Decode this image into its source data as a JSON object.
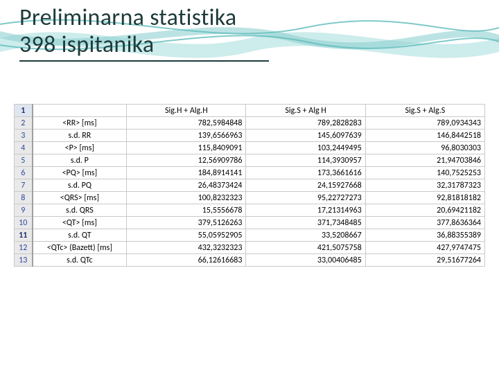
{
  "title": {
    "line1": "Preliminarna statistika",
    "line2": "398 ispitanika",
    "underline_color": "#1f3b3b",
    "text_color": "#1f3b3b",
    "font_size": 34
  },
  "waves": {
    "colors": [
      "#b8e4e4",
      "#8fd1d1",
      "#5fbcbc"
    ],
    "background": "#ffffff"
  },
  "table": {
    "border_color": "#c9c9c9",
    "rownum_bg": "#e9e9e9",
    "rownum_text": "#2e4aa0",
    "header_rownum_bg": "#dfe6ef",
    "font_size": 12,
    "columns": [
      "",
      "",
      "Sig.H + Alg.H",
      "Sig.S + Alg H",
      "Sig.S + Alg.S"
    ],
    "rows": [
      {
        "n": "1",
        "bold": true,
        "label": "",
        "v": [
          "",
          "",
          ""
        ]
      },
      {
        "n": "2",
        "bold": false,
        "label": "<RR> [ms]",
        "v": [
          "782,5984848",
          "789,2828283",
          "789,0934343"
        ]
      },
      {
        "n": "3",
        "bold": false,
        "label": "s.d. RR",
        "v": [
          "139,6566963",
          "145,6097639",
          "146,8442518"
        ]
      },
      {
        "n": "4",
        "bold": false,
        "label": "<P> [ms]",
        "v": [
          "115,8409091",
          "103,2449495",
          "96,8030303"
        ]
      },
      {
        "n": "5",
        "bold": false,
        "label": "s.d. P",
        "v": [
          "12,56909786",
          "114,3930957",
          "21,94703846"
        ]
      },
      {
        "n": "6",
        "bold": false,
        "label": "<PQ> [ms]",
        "v": [
          "184,8914141",
          "173,3661616",
          "140,7525253"
        ]
      },
      {
        "n": "7",
        "bold": false,
        "label": "s.d. PQ",
        "v": [
          "26,48373424",
          "24,15927668",
          "32,31787323"
        ]
      },
      {
        "n": "8",
        "bold": false,
        "label": "<QRS> [ms]",
        "v": [
          "100,8232323",
          "95,22727273",
          "92,81818182"
        ]
      },
      {
        "n": "9",
        "bold": false,
        "label": "s.d. QRS",
        "v": [
          "15,5556678",
          "17,21314963",
          "20,69421182"
        ]
      },
      {
        "n": "10",
        "bold": false,
        "label": "<QT> [ms]",
        "v": [
          "379,5126263",
          "371,7348485",
          "377,8636364"
        ]
      },
      {
        "n": "11",
        "bold": true,
        "label": "s.d. QT",
        "v": [
          "55,05952905",
          "33,5208667",
          "36,88355389"
        ]
      },
      {
        "n": "12",
        "bold": false,
        "label": "<QTc> (Bazett) [ms]",
        "v": [
          "432,3232323",
          "421,5075758",
          "427,9747475"
        ]
      },
      {
        "n": "13",
        "bold": false,
        "label": "s.d. QTc",
        "v": [
          "66,12616683",
          "33,00406485",
          "29,51677264"
        ]
      }
    ]
  }
}
